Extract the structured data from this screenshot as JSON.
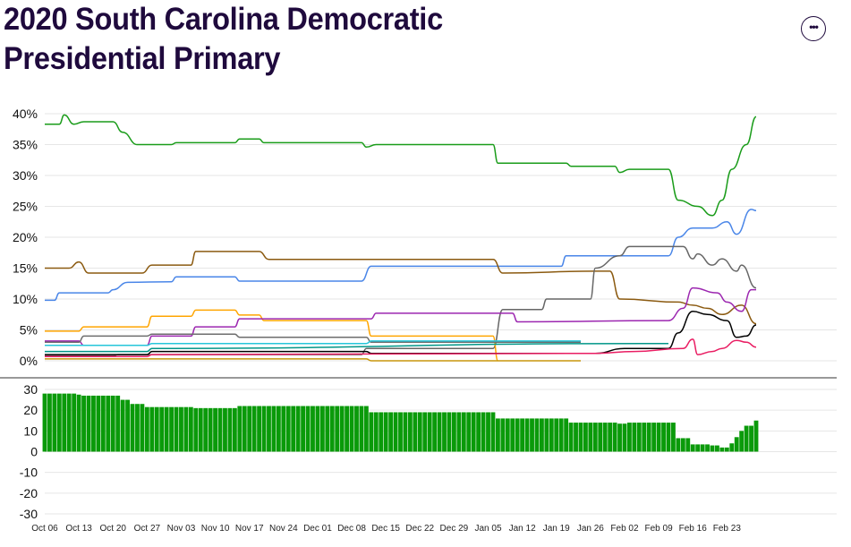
{
  "title": "2020 South Carolina Democratic Presidential Primary",
  "more_icon": "ellipsis-icon",
  "chart_data": [
    {
      "type": "line",
      "ylim": [
        0,
        40
      ],
      "yticks": [
        "0%",
        "5%",
        "10%",
        "15%",
        "20%",
        "25%",
        "30%",
        "35%",
        "40%"
      ],
      "grid": true,
      "legend": "none",
      "series": [
        {
          "color": "#1a9c1a",
          "points": [
            [
              "2019-10-06",
              38.3
            ],
            [
              "2019-10-09",
              38.3
            ],
            [
              "2019-10-10",
              39.8
            ],
            [
              "2019-10-12",
              38.3
            ],
            [
              "2019-10-14",
              38.7
            ],
            [
              "2019-10-20",
              38.7
            ],
            [
              "2019-10-22",
              37
            ],
            [
              "2019-10-25",
              35
            ],
            [
              "2019-11-01",
              35
            ],
            [
              "2019-11-02",
              35.3
            ],
            [
              "2019-11-14",
              35.3
            ],
            [
              "2019-11-15",
              35.9
            ],
            [
              "2019-11-19",
              35.9
            ],
            [
              "2019-11-20",
              35.3
            ],
            [
              "2019-12-10",
              35.3
            ],
            [
              "2019-12-11",
              34.6
            ],
            [
              "2019-12-13",
              35
            ],
            [
              "2020-01-06",
              35
            ],
            [
              "2020-01-07",
              32
            ],
            [
              "2020-01-21",
              32
            ],
            [
              "2020-01-22",
              31.5
            ],
            [
              "2020-01-31",
              31.5
            ],
            [
              "2020-02-01",
              30.5
            ],
            [
              "2020-02-03",
              31
            ],
            [
              "2020-02-11",
              31
            ],
            [
              "2020-02-13",
              26
            ],
            [
              "2020-02-17",
              25
            ],
            [
              "2020-02-20",
              23.5
            ],
            [
              "2020-02-22",
              26
            ],
            [
              "2020-02-24",
              31
            ],
            [
              "2020-02-27",
              35
            ],
            [
              "2020-02-29",
              39.5
            ]
          ]
        },
        {
          "color": "#4a86e8",
          "points": [
            [
              "2019-10-06",
              9.8
            ],
            [
              "2019-10-08",
              9.8
            ],
            [
              "2019-10-09",
              11
            ],
            [
              "2019-10-19",
              11
            ],
            [
              "2019-10-20",
              11.5
            ],
            [
              "2019-10-23",
              12.7
            ],
            [
              "2019-11-01",
              12.8
            ],
            [
              "2019-11-02",
              13.6
            ],
            [
              "2019-11-14",
              13.6
            ],
            [
              "2019-11-15",
              12.9
            ],
            [
              "2019-12-10",
              12.9
            ],
            [
              "2019-12-12",
              15.3
            ],
            [
              "2020-01-12",
              15.3
            ],
            [
              "2020-01-20",
              15.3
            ],
            [
              "2020-01-21",
              17
            ],
            [
              "2020-02-11",
              17
            ],
            [
              "2020-02-13",
              20
            ],
            [
              "2020-02-16",
              21.5
            ],
            [
              "2020-02-20",
              21.5
            ],
            [
              "2020-02-23",
              22.5
            ],
            [
              "2020-02-25",
              20.5
            ],
            [
              "2020-02-28",
              24.5
            ],
            [
              "2020-02-29",
              24.3
            ]
          ]
        },
        {
          "color": "#8b5a10",
          "points": [
            [
              "2019-10-06",
              15
            ],
            [
              "2019-10-11",
              15
            ],
            [
              "2019-10-13",
              16
            ],
            [
              "2019-10-15",
              14.2
            ],
            [
              "2019-10-26",
              14.2
            ],
            [
              "2019-10-28",
              15.5
            ],
            [
              "2019-11-05",
              15.5
            ],
            [
              "2019-11-06",
              17.7
            ],
            [
              "2019-11-19",
              17.7
            ],
            [
              "2019-11-21",
              16.4
            ],
            [
              "2020-01-06",
              16.4
            ],
            [
              "2020-01-08",
              14.2
            ],
            [
              "2020-01-27",
              14.5
            ],
            [
              "2020-01-30",
              14.5
            ],
            [
              "2020-02-01",
              10
            ],
            [
              "2020-02-13",
              9.5
            ],
            [
              "2020-02-16",
              9
            ],
            [
              "2020-02-19",
              8.5
            ],
            [
              "2020-02-22",
              7.5
            ],
            [
              "2020-02-26",
              9
            ],
            [
              "2020-02-29",
              6
            ]
          ]
        },
        {
          "color": "#666666",
          "points": [
            [
              "2019-10-06",
              0.8
            ],
            [
              "2019-10-20",
              0.8
            ],
            [
              "2019-10-21",
              1
            ],
            [
              "2019-12-10",
              1
            ],
            [
              "2019-12-11",
              2
            ],
            [
              "2020-01-06",
              2
            ],
            [
              "2020-01-08",
              8.3
            ],
            [
              "2020-01-16",
              8.3
            ],
            [
              "2020-01-17",
              10
            ],
            [
              "2020-01-26",
              10
            ],
            [
              "2020-01-27",
              15
            ],
            [
              "2020-02-01",
              17
            ],
            [
              "2020-02-03",
              18.5
            ],
            [
              "2020-02-14",
              18.5
            ],
            [
              "2020-02-16",
              16.5
            ],
            [
              "2020-02-17",
              17.3
            ],
            [
              "2020-02-20",
              15.5
            ],
            [
              "2020-02-22",
              16.5
            ],
            [
              "2020-02-25",
              14.5
            ],
            [
              "2020-02-26",
              15.5
            ],
            [
              "2020-02-29",
              11.8
            ]
          ]
        },
        {
          "color": "#ffa500",
          "points": [
            [
              "2019-10-06",
              4.8
            ],
            [
              "2019-10-13",
              4.8
            ],
            [
              "2019-10-14",
              5.5
            ],
            [
              "2019-10-27",
              5.5
            ],
            [
              "2019-10-28",
              7.2
            ],
            [
              "2019-11-05",
              7.2
            ],
            [
              "2019-11-06",
              8.2
            ],
            [
              "2019-11-14",
              8.2
            ],
            [
              "2019-11-15",
              7.4
            ],
            [
              "2019-11-19",
              7.4
            ],
            [
              "2019-11-20",
              6.5
            ],
            [
              "2019-12-11",
              6.5
            ],
            [
              "2019-12-12",
              4
            ],
            [
              "2020-01-06",
              4
            ],
            [
              "2020-01-07",
              0
            ]
          ]
        },
        {
          "color": "#9c27b0",
          "points": [
            [
              "2019-10-06",
              3.2
            ],
            [
              "2019-10-13",
              3.2
            ],
            [
              "2019-10-14",
              2.5
            ],
            [
              "2019-10-27",
              2.5
            ],
            [
              "2019-10-28",
              4
            ],
            [
              "2019-11-05",
              4
            ],
            [
              "2019-11-06",
              5.5
            ],
            [
              "2019-11-14",
              5.5
            ],
            [
              "2019-11-15",
              6.8
            ],
            [
              "2019-12-12",
              6.8
            ],
            [
              "2019-12-13",
              7.7
            ],
            [
              "2020-01-10",
              7.7
            ],
            [
              "2020-01-11",
              6.3
            ],
            [
              "2020-02-11",
              6.5
            ],
            [
              "2020-02-14",
              8.5
            ],
            [
              "2020-02-16",
              11.8
            ],
            [
              "2020-02-21",
              11
            ],
            [
              "2020-02-23",
              9.5
            ],
            [
              "2020-02-26",
              8
            ],
            [
              "2020-02-28",
              11.5
            ],
            [
              "2020-02-29",
              11.5
            ]
          ]
        },
        {
          "color": "#000000",
          "points": [
            [
              "2019-10-06",
              1
            ],
            [
              "2019-10-27",
              1
            ],
            [
              "2019-10-28",
              1.5
            ],
            [
              "2019-12-11",
              1.5
            ],
            [
              "2019-12-12",
              1.2
            ],
            [
              "2020-01-27",
              1.2
            ],
            [
              "2020-02-02",
              2
            ],
            [
              "2020-02-11",
              2
            ],
            [
              "2020-02-13",
              4.5
            ],
            [
              "2020-02-16",
              8
            ],
            [
              "2020-02-19",
              7.5
            ],
            [
              "2020-02-23",
              6.5
            ],
            [
              "2020-02-25",
              3.8
            ],
            [
              "2020-02-27",
              4
            ],
            [
              "2020-02-29",
              5.8
            ]
          ]
        },
        {
          "color": "#6d6d6d",
          "points": [
            [
              "2019-10-06",
              3
            ],
            [
              "2019-10-13",
              3
            ],
            [
              "2019-10-14",
              4
            ],
            [
              "2019-10-27",
              4
            ],
            [
              "2019-10-28",
              4.3
            ],
            [
              "2019-11-14",
              4.3
            ],
            [
              "2019-11-15",
              3.8
            ],
            [
              "2019-12-11",
              3.8
            ],
            [
              "2019-12-12",
              3
            ],
            [
              "2020-01-24",
              3
            ]
          ]
        },
        {
          "color": "#26c6da",
          "points": [
            [
              "2019-10-06",
              2.5
            ],
            [
              "2019-10-27",
              2.5
            ],
            [
              "2019-10-28",
              2.8
            ],
            [
              "2019-12-11",
              2.8
            ],
            [
              "2019-12-12",
              3.2
            ],
            [
              "2020-01-24",
              3.2
            ]
          ]
        },
        {
          "color": "#e91e63",
          "points": [
            [
              "2019-10-06",
              0.7
            ],
            [
              "2019-10-27",
              0.7
            ],
            [
              "2019-10-28",
              1
            ],
            [
              "2020-01-27",
              1.2
            ],
            [
              "2020-02-04",
              1.5
            ],
            [
              "2020-02-14",
              2
            ],
            [
              "2020-02-16",
              3.5
            ],
            [
              "2020-02-17",
              1
            ],
            [
              "2020-02-20",
              1.5
            ],
            [
              "2020-02-22",
              2
            ],
            [
              "2020-02-25",
              3.3
            ],
            [
              "2020-02-27",
              3
            ],
            [
              "2020-02-29",
              2.2
            ]
          ]
        },
        {
          "color": "#c8960c",
          "points": [
            [
              "2019-10-06",
              0.3
            ],
            [
              "2019-12-11",
              0.3
            ],
            [
              "2019-12-12",
              0
            ],
            [
              "2020-01-24",
              0
            ]
          ]
        },
        {
          "color": "#009688",
          "points": [
            [
              "2019-10-06",
              1.5
            ],
            [
              "2019-10-27",
              1.5
            ],
            [
              "2019-10-28",
              2
            ],
            [
              "2020-02-06",
              2.8
            ],
            [
              "2020-02-11",
              2.8
            ]
          ]
        }
      ]
    },
    {
      "type": "bar",
      "ylim": [
        -30,
        30
      ],
      "yticks": [
        "30",
        "20",
        "10",
        "0",
        "-10",
        "-20",
        "-30"
      ],
      "color": "#0a9a0a",
      "points": [
        [
          "2019-10-06",
          28
        ],
        [
          "2019-10-13",
          27.5
        ],
        [
          "2019-10-14",
          27
        ],
        [
          "2019-10-20",
          27
        ],
        [
          "2019-10-22",
          25
        ],
        [
          "2019-10-24",
          23
        ],
        [
          "2019-10-27",
          21.5
        ],
        [
          "2019-11-06",
          21
        ],
        [
          "2019-11-15",
          22
        ],
        [
          "2019-12-11",
          22
        ],
        [
          "2019-12-12",
          19
        ],
        [
          "2020-01-06",
          19
        ],
        [
          "2020-01-07",
          16
        ],
        [
          "2020-01-21",
          16
        ],
        [
          "2020-01-22",
          14
        ],
        [
          "2020-02-01",
          13.5
        ],
        [
          "2020-02-03",
          14
        ],
        [
          "2020-02-11",
          14
        ],
        [
          "2020-02-13",
          6.5
        ],
        [
          "2020-02-16",
          3.5
        ],
        [
          "2020-02-20",
          3
        ],
        [
          "2020-02-22",
          2
        ],
        [
          "2020-02-24",
          4
        ],
        [
          "2020-02-25",
          7
        ],
        [
          "2020-02-26",
          10
        ],
        [
          "2020-02-27",
          12.5
        ],
        [
          "2020-02-29",
          15
        ]
      ]
    }
  ],
  "x_axis": {
    "start": "2019-10-06",
    "end": "2020-02-29",
    "ticks": [
      {
        "date": "2019-10-06",
        "label": "Oct 06"
      },
      {
        "date": "2019-10-13",
        "label": "Oct 13"
      },
      {
        "date": "2019-10-20",
        "label": "Oct 20"
      },
      {
        "date": "2019-10-27",
        "label": "Oct 27"
      },
      {
        "date": "2019-11-03",
        "label": "Nov 03"
      },
      {
        "date": "2019-11-10",
        "label": "Nov 10"
      },
      {
        "date": "2019-11-17",
        "label": "Nov 17"
      },
      {
        "date": "2019-11-24",
        "label": "Nov 24"
      },
      {
        "date": "2019-12-01",
        "label": "Dec 01"
      },
      {
        "date": "2019-12-08",
        "label": "Dec 08"
      },
      {
        "date": "2019-12-15",
        "label": "Dec 15"
      },
      {
        "date": "2019-12-22",
        "label": "Dec 22"
      },
      {
        "date": "2019-12-29",
        "label": "Dec 29"
      },
      {
        "date": "2020-01-05",
        "label": "Jan 05"
      },
      {
        "date": "2020-01-12",
        "label": "Jan 12"
      },
      {
        "date": "2020-01-19",
        "label": "Jan 19"
      },
      {
        "date": "2020-01-26",
        "label": "Jan 26"
      },
      {
        "date": "2020-02-02",
        "label": "Feb 02"
      },
      {
        "date": "2020-02-09",
        "label": "Feb 09"
      },
      {
        "date": "2020-02-16",
        "label": "Feb 16"
      },
      {
        "date": "2020-02-23",
        "label": "Feb 23"
      }
    ]
  }
}
